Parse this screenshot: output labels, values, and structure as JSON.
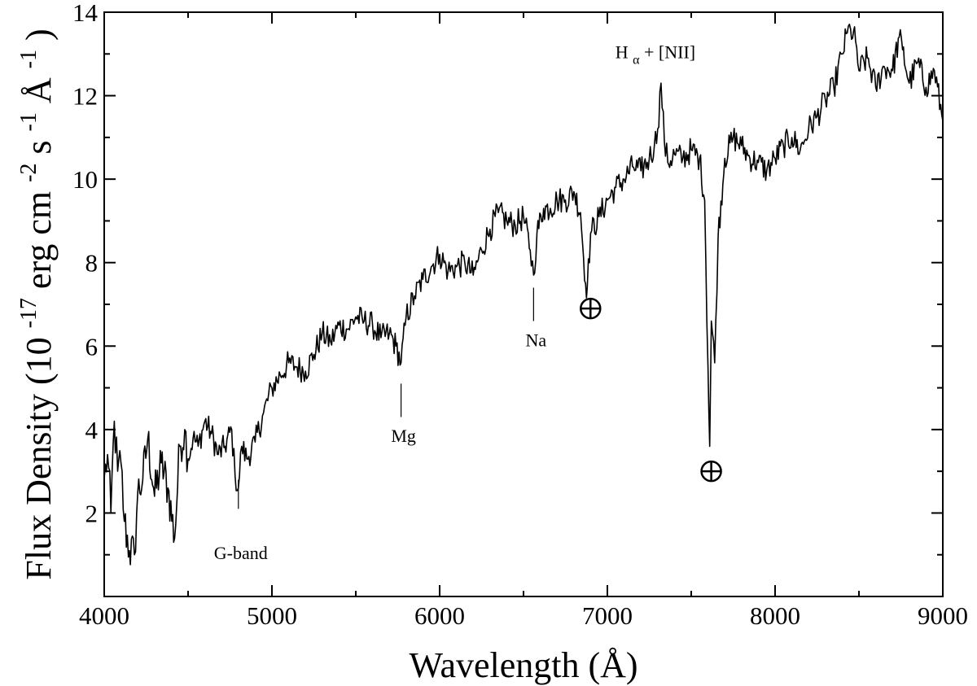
{
  "chart_data": {
    "type": "line",
    "title": "",
    "xlabel": "Wavelength (Å)",
    "ylabel_parts": {
      "main": "Flux Density",
      "open": "(10",
      "exp1": "-17",
      "mid1": " erg cm",
      "exp2": "-2",
      "mid2": " s",
      "exp3": "-1",
      "mid3": " Å",
      "exp4": "-1",
      "close": ")"
    },
    "xlim": [
      4000,
      9000
    ],
    "ylim": [
      0,
      14
    ],
    "x_ticks": [
      4000,
      5000,
      6000,
      7000,
      8000,
      9000
    ],
    "x_tick_labels": [
      "4000",
      "5000",
      "6000",
      "7000",
      "8000",
      "9000"
    ],
    "y_ticks": [
      2,
      4,
      6,
      8,
      10,
      12,
      14
    ],
    "y_tick_labels": [
      "2",
      "4",
      "6",
      "8",
      "10",
      "12",
      "14"
    ],
    "grid": false,
    "legend": "none",
    "series": [
      {
        "color": "#000000",
        "x": [
          4000,
          4020,
          4040,
          4060,
          4080,
          4100,
          4120,
          4150,
          4180,
          4200,
          4230,
          4260,
          4300,
          4340,
          4380,
          4420,
          4450,
          4480,
          4500,
          4530,
          4560,
          4600,
          4640,
          4680,
          4720,
          4760,
          4780,
          4800,
          4820,
          4850,
          4900,
          4950,
          5000,
          5050,
          5100,
          5150,
          5200,
          5250,
          5300,
          5350,
          5400,
          5450,
          5500,
          5550,
          5600,
          5650,
          5700,
          5740,
          5770,
          5800,
          5850,
          5900,
          5950,
          6000,
          6050,
          6100,
          6150,
          6200,
          6250,
          6300,
          6350,
          6400,
          6450,
          6500,
          6540,
          6560,
          6580,
          6620,
          6660,
          6700,
          6750,
          6800,
          6840,
          6870,
          6880,
          6900,
          6950,
          7000,
          7050,
          7100,
          7150,
          7200,
          7250,
          7280,
          7300,
          7320,
          7340,
          7360,
          7400,
          7450,
          7500,
          7550,
          7580,
          7600,
          7610,
          7620,
          7640,
          7660,
          7700,
          7750,
          7800,
          7850,
          7900,
          7950,
          8000,
          8050,
          8100,
          8150,
          8200,
          8250,
          8300,
          8350,
          8400,
          8430,
          8450,
          8480,
          8500,
          8550,
          8600,
          8650,
          8700,
          8740,
          8760,
          8800,
          8850,
          8900,
          8950,
          9000
        ],
        "y": [
          2.8,
          3.4,
          2.0,
          4.2,
          3.0,
          3.2,
          1.8,
          1.1,
          1.0,
          2.5,
          2.8,
          3.8,
          2.4,
          3.2,
          2.6,
          1.4,
          3.6,
          4.0,
          3.3,
          3.8,
          3.6,
          4.2,
          3.9,
          3.4,
          3.6,
          4.0,
          2.9,
          2.6,
          3.6,
          3.3,
          3.7,
          4.4,
          5.0,
          5.3,
          5.6,
          5.5,
          5.4,
          5.8,
          6.3,
          6.1,
          6.5,
          6.4,
          6.7,
          6.6,
          6.5,
          6.2,
          6.3,
          6.0,
          5.6,
          6.7,
          7.2,
          7.6,
          7.9,
          8.2,
          7.8,
          7.9,
          8.0,
          7.7,
          8.3,
          8.8,
          9.2,
          9.0,
          8.9,
          9.1,
          8.3,
          7.7,
          8.7,
          9.3,
          9.3,
          9.5,
          9.5,
          9.7,
          9.2,
          7.5,
          7.4,
          8.7,
          9.1,
          9.5,
          9.8,
          10.0,
          10.3,
          10.2,
          10.5,
          10.8,
          11.2,
          12.3,
          10.9,
          10.4,
          10.6,
          10.5,
          10.7,
          10.5,
          9.5,
          5.5,
          3.6,
          6.6,
          5.6,
          8.6,
          10.5,
          11.0,
          10.8,
          10.5,
          10.4,
          10.2,
          10.5,
          10.8,
          11.0,
          10.7,
          11.2,
          11.5,
          11.9,
          12.2,
          13.0,
          13.5,
          13.6,
          13.3,
          12.6,
          12.9,
          12.2,
          12.7,
          12.6,
          13.4,
          13.1,
          12.3,
          12.8,
          12.2,
          12.6,
          11.4
        ]
      }
    ],
    "annotations": [
      {
        "label": "G-band",
        "x": 4800,
        "line_y": [
          2.1,
          2.8
        ],
        "text_y": 0.9
      },
      {
        "label": "Mg",
        "x": 5770,
        "line_y": [
          4.3,
          5.1
        ],
        "text_y": 3.7
      },
      {
        "label": "Na",
        "x": 6560,
        "line_y": [
          6.6,
          7.4
        ],
        "text_y": 6.0
      }
    ],
    "halpha_label": {
      "main": "H",
      "sub": "α",
      "rest": " + [NII]",
      "x": 7290,
      "y": 12.9
    },
    "telluric_markers": [
      {
        "x": 6880,
        "y": 6.9
      },
      {
        "x": 7600,
        "y": 3.0
      }
    ]
  }
}
